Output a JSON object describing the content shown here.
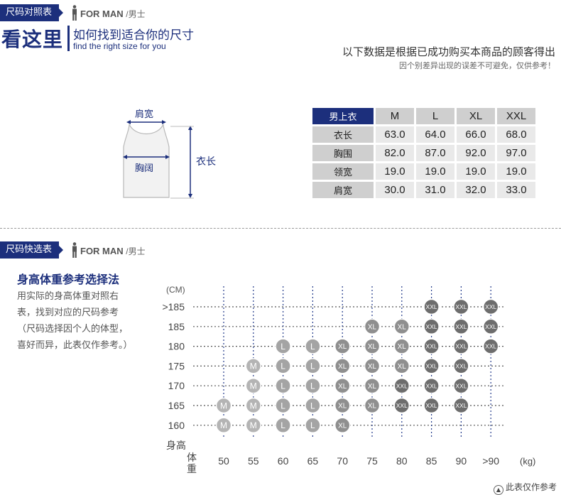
{
  "section1": {
    "tag": "尺码对照表",
    "for_man": "FOR MAN",
    "for_man_cn": "/男士",
    "big_title": "看这里",
    "sub_title": "如何找到适合你的尺寸",
    "sub_en": "find the right size for you",
    "note_main": "以下数据是根据已成功购买本商品的顾客得出",
    "note_sub": "因个别差异出现的误差不可避免，仅供参考！"
  },
  "diagram": {
    "shoulder": "肩宽",
    "chest": "胸阔",
    "length": "衣长"
  },
  "size_table": {
    "corner": "男上衣",
    "sizes": [
      "M",
      "L",
      "XL",
      "XXL"
    ],
    "rows": [
      {
        "label": "衣长",
        "values": [
          "63.0",
          "64.0",
          "66.0",
          "68.0"
        ]
      },
      {
        "label": "胸围",
        "values": [
          "82.0",
          "87.0",
          "92.0",
          "97.0"
        ]
      },
      {
        "label": "领宽",
        "values": [
          "19.0",
          "19.0",
          "19.0",
          "19.0"
        ]
      },
      {
        "label": "肩宽",
        "values": [
          "30.0",
          "31.0",
          "32.0",
          "33.0"
        ]
      }
    ]
  },
  "section2": {
    "tag": "尺码快选表",
    "for_man": "FOR MAN",
    "for_man_cn": "/男士",
    "rec_title": "身高体重参考选择法",
    "rec_body": "用实际的身高体重对照右表，找到对应的尺码参考（尺码选择因个人的体型，喜好而异，此表仅作参考。）",
    "footnote": "此表仅作参考"
  },
  "chart_data": {
    "type": "table",
    "y_unit": "(CM)",
    "y_axis_name": "身高",
    "x_axis_name": "体重",
    "x_unit": "(kg)",
    "heights": [
      ">185",
      "185",
      "180",
      "175",
      "170",
      "165",
      "160"
    ],
    "weights": [
      "50",
      "55",
      "60",
      "65",
      "70",
      "75",
      "80",
      "85",
      "90",
      ">90"
    ],
    "colors": {
      "M": "#b4b4b4",
      "L": "#a4a4a4",
      "XL": "#8f8f8f",
      "XXL": "#6d6d6d"
    },
    "cells": [
      {
        "height": ">185",
        "weight": "85",
        "size": "XXL"
      },
      {
        "height": ">185",
        "weight": "90",
        "size": "XXL"
      },
      {
        "height": ">185",
        "weight": ">90",
        "size": "XXL"
      },
      {
        "height": "185",
        "weight": "75",
        "size": "XL"
      },
      {
        "height": "185",
        "weight": "80",
        "size": "XL"
      },
      {
        "height": "185",
        "weight": "85",
        "size": "XXL"
      },
      {
        "height": "185",
        "weight": "90",
        "size": "XXL"
      },
      {
        "height": "185",
        "weight": ">90",
        "size": "XXL"
      },
      {
        "height": "180",
        "weight": "60",
        "size": "L"
      },
      {
        "height": "180",
        "weight": "65",
        "size": "L"
      },
      {
        "height": "180",
        "weight": "70",
        "size": "XL"
      },
      {
        "height": "180",
        "weight": "75",
        "size": "XL"
      },
      {
        "height": "180",
        "weight": "80",
        "size": "XL"
      },
      {
        "height": "180",
        "weight": "85",
        "size": "XXL"
      },
      {
        "height": "180",
        "weight": "90",
        "size": "XXL"
      },
      {
        "height": "180",
        "weight": ">90",
        "size": "XXL"
      },
      {
        "height": "175",
        "weight": "55",
        "size": "M"
      },
      {
        "height": "175",
        "weight": "60",
        "size": "L"
      },
      {
        "height": "175",
        "weight": "65",
        "size": "L"
      },
      {
        "height": "175",
        "weight": "70",
        "size": "XL"
      },
      {
        "height": "175",
        "weight": "75",
        "size": "XL"
      },
      {
        "height": "175",
        "weight": "80",
        "size": "XL"
      },
      {
        "height": "175",
        "weight": "85",
        "size": "XXL"
      },
      {
        "height": "175",
        "weight": "90",
        "size": "XXL"
      },
      {
        "height": "170",
        "weight": "55",
        "size": "M"
      },
      {
        "height": "170",
        "weight": "60",
        "size": "L"
      },
      {
        "height": "170",
        "weight": "65",
        "size": "L"
      },
      {
        "height": "170",
        "weight": "70",
        "size": "XL"
      },
      {
        "height": "170",
        "weight": "75",
        "size": "XL"
      },
      {
        "height": "170",
        "weight": "80",
        "size": "XXL"
      },
      {
        "height": "170",
        "weight": "85",
        "size": "XXL"
      },
      {
        "height": "170",
        "weight": "90",
        "size": "XXL"
      },
      {
        "height": "165",
        "weight": "50",
        "size": "M"
      },
      {
        "height": "165",
        "weight": "55",
        "size": "M"
      },
      {
        "height": "165",
        "weight": "60",
        "size": "L"
      },
      {
        "height": "165",
        "weight": "65",
        "size": "L"
      },
      {
        "height": "165",
        "weight": "70",
        "size": "XL"
      },
      {
        "height": "165",
        "weight": "75",
        "size": "XL"
      },
      {
        "height": "165",
        "weight": "80",
        "size": "XXL"
      },
      {
        "height": "165",
        "weight": "85",
        "size": "XXL"
      },
      {
        "height": "165",
        "weight": "90",
        "size": "XXL"
      },
      {
        "height": "160",
        "weight": "50",
        "size": "M"
      },
      {
        "height": "160",
        "weight": "55",
        "size": "M"
      },
      {
        "height": "160",
        "weight": "60",
        "size": "L"
      },
      {
        "height": "160",
        "weight": "65",
        "size": "L"
      },
      {
        "height": "160",
        "weight": "70",
        "size": "XL"
      }
    ]
  }
}
